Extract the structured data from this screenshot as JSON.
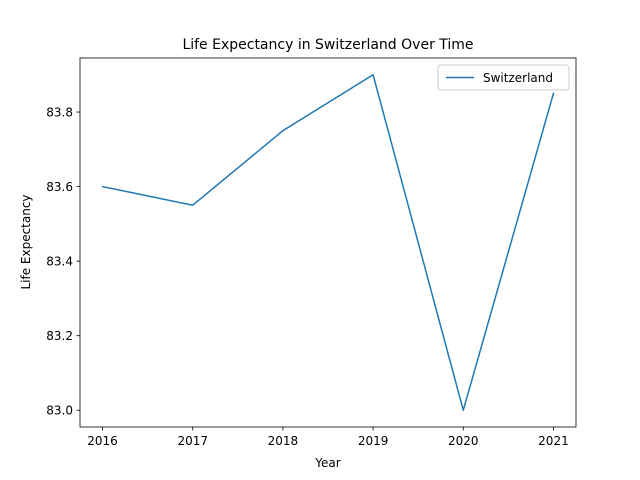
{
  "chart_data": {
    "type": "line",
    "title": "Life Expectancy in Switzerland Over Time",
    "xlabel": "Year",
    "ylabel": "Life Expectancy",
    "x": [
      2016,
      2017,
      2018,
      2019,
      2020,
      2021
    ],
    "series": [
      {
        "name": "Switzerland",
        "color": "#1f77b4",
        "values": [
          83.6,
          83.55,
          83.75,
          83.9,
          83.0,
          83.85
        ]
      }
    ],
    "xlim": [
      2015.75,
      2021.25
    ],
    "ylim": [
      82.955,
      83.945
    ],
    "x_ticks": [
      "2016",
      "2017",
      "2018",
      "2019",
      "2020",
      "2021"
    ],
    "y_ticks": [
      "83.0",
      "83.2",
      "83.4",
      "83.6",
      "83.8"
    ],
    "grid": false,
    "legend_position": "top-right"
  }
}
